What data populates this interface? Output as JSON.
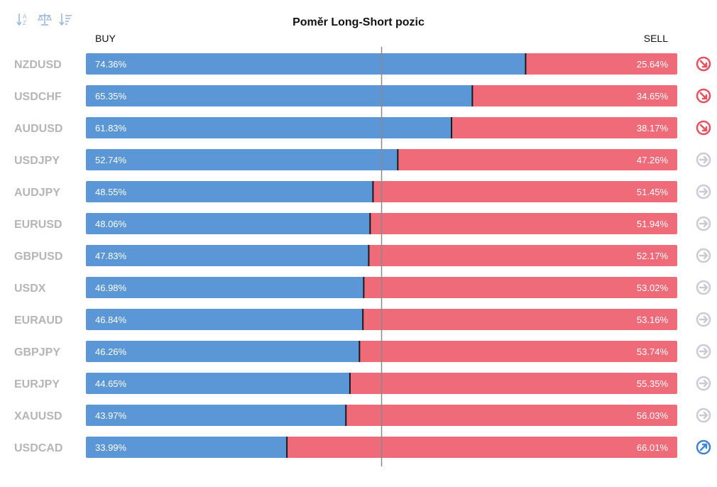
{
  "chart_data": {
    "type": "bar",
    "title": "Poměr Long-Short pozic",
    "buy_label": "BUY",
    "sell_label": "SELL",
    "categories": [
      "NZDUSD",
      "USDCHF",
      "AUDUSD",
      "USDJPY",
      "AUDJPY",
      "EURUSD",
      "GBPUSD",
      "USDX",
      "EURAUD",
      "GBPJPY",
      "EURJPY",
      "XAUUSD",
      "USDCAD"
    ],
    "series": [
      {
        "name": "BUY",
        "values": [
          74.36,
          65.35,
          61.83,
          52.74,
          48.55,
          48.06,
          47.83,
          46.98,
          46.84,
          46.26,
          44.65,
          43.97,
          33.99
        ],
        "labels": [
          "74.36%",
          "65.35%",
          "61.83%",
          "52.74%",
          "48.55%",
          "48.06%",
          "47.83%",
          "46.98%",
          "46.84%",
          "46.26%",
          "44.65%",
          "43.97%",
          "33.99%"
        ],
        "color": "#5b96d6"
      },
      {
        "name": "SELL",
        "values": [
          25.64,
          34.65,
          38.17,
          47.26,
          51.45,
          51.94,
          52.17,
          53.02,
          53.16,
          53.74,
          55.35,
          56.03,
          66.01
        ],
        "labels": [
          "25.64%",
          "34.65%",
          "38.17%",
          "47.26%",
          "51.45%",
          "51.94%",
          "52.17%",
          "53.02%",
          "53.16%",
          "53.74%",
          "55.35%",
          "56.03%",
          "66.01%"
        ],
        "color": "#f06b79"
      }
    ],
    "signals": [
      "down",
      "down",
      "down",
      "neutral",
      "neutral",
      "neutral",
      "neutral",
      "neutral",
      "neutral",
      "neutral",
      "neutral",
      "neutral",
      "up"
    ],
    "signal_colors": {
      "down": "#e8505f",
      "neutral": "#c8ccd4",
      "up": "#3d85d1"
    },
    "xlim": [
      0,
      100
    ],
    "midline": 50
  },
  "toolbar": {
    "icons": [
      "sort-alpha-icon",
      "balance-icon",
      "sort-desc-icon"
    ]
  }
}
